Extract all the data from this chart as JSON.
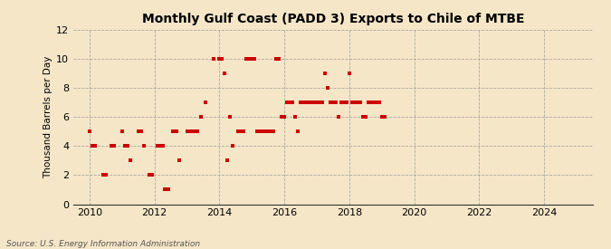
{
  "title": "Monthly Gulf Coast (PADD 3) Exports to Chile of MTBE",
  "ylabel": "Thousand Barrels per Day",
  "source_text": "Source: U.S. Energy Information Administration",
  "background_color": "#f5e6c8",
  "dot_color": "#cc0000",
  "xlim": [
    2009.5,
    2025.5
  ],
  "ylim": [
    0,
    12
  ],
  "yticks": [
    0,
    2,
    4,
    6,
    8,
    10,
    12
  ],
  "xticks": [
    2010,
    2012,
    2014,
    2016,
    2018,
    2020,
    2022,
    2024
  ],
  "data_points": [
    [
      2010.0,
      5
    ],
    [
      2010.08,
      4
    ],
    [
      2010.17,
      4
    ],
    [
      2010.42,
      2
    ],
    [
      2010.5,
      2
    ],
    [
      2010.67,
      4
    ],
    [
      2010.75,
      4
    ],
    [
      2011.0,
      5
    ],
    [
      2011.08,
      4
    ],
    [
      2011.17,
      4
    ],
    [
      2011.25,
      3
    ],
    [
      2011.5,
      5
    ],
    [
      2011.58,
      5
    ],
    [
      2011.67,
      4
    ],
    [
      2011.83,
      2
    ],
    [
      2011.92,
      2
    ],
    [
      2012.08,
      4
    ],
    [
      2012.17,
      4
    ],
    [
      2012.25,
      4
    ],
    [
      2012.33,
      1
    ],
    [
      2012.42,
      1
    ],
    [
      2012.58,
      5
    ],
    [
      2012.67,
      5
    ],
    [
      2012.75,
      3
    ],
    [
      2013.0,
      5
    ],
    [
      2013.08,
      5
    ],
    [
      2013.17,
      5
    ],
    [
      2013.25,
      5
    ],
    [
      2013.33,
      5
    ],
    [
      2013.42,
      6
    ],
    [
      2013.58,
      7
    ],
    [
      2013.83,
      10
    ],
    [
      2014.0,
      10
    ],
    [
      2014.08,
      10
    ],
    [
      2014.17,
      9
    ],
    [
      2014.25,
      3
    ],
    [
      2014.33,
      6
    ],
    [
      2014.42,
      4
    ],
    [
      2014.58,
      5
    ],
    [
      2014.67,
      5
    ],
    [
      2014.75,
      5
    ],
    [
      2014.83,
      10
    ],
    [
      2014.92,
      10
    ],
    [
      2015.0,
      10
    ],
    [
      2015.08,
      10
    ],
    [
      2015.17,
      5
    ],
    [
      2015.25,
      5
    ],
    [
      2015.33,
      5
    ],
    [
      2015.42,
      5
    ],
    [
      2015.5,
      5
    ],
    [
      2015.58,
      5
    ],
    [
      2015.67,
      5
    ],
    [
      2015.75,
      10
    ],
    [
      2015.83,
      10
    ],
    [
      2015.92,
      6
    ],
    [
      2016.0,
      6
    ],
    [
      2016.08,
      7
    ],
    [
      2016.17,
      7
    ],
    [
      2016.25,
      7
    ],
    [
      2016.33,
      6
    ],
    [
      2016.42,
      5
    ],
    [
      2016.5,
      7
    ],
    [
      2016.58,
      7
    ],
    [
      2016.67,
      7
    ],
    [
      2016.75,
      7
    ],
    [
      2016.83,
      7
    ],
    [
      2016.92,
      7
    ],
    [
      2017.0,
      7
    ],
    [
      2017.08,
      7
    ],
    [
      2017.17,
      7
    ],
    [
      2017.25,
      9
    ],
    [
      2017.33,
      8
    ],
    [
      2017.42,
      7
    ],
    [
      2017.5,
      7
    ],
    [
      2017.58,
      7
    ],
    [
      2017.67,
      6
    ],
    [
      2017.75,
      7
    ],
    [
      2017.83,
      7
    ],
    [
      2017.92,
      7
    ],
    [
      2018.0,
      9
    ],
    [
      2018.08,
      7
    ],
    [
      2018.17,
      7
    ],
    [
      2018.25,
      7
    ],
    [
      2018.33,
      7
    ],
    [
      2018.42,
      6
    ],
    [
      2018.5,
      6
    ],
    [
      2018.58,
      7
    ],
    [
      2018.67,
      7
    ],
    [
      2018.75,
      7
    ],
    [
      2018.83,
      7
    ],
    [
      2018.92,
      7
    ],
    [
      2019.0,
      6
    ],
    [
      2019.08,
      6
    ]
  ]
}
